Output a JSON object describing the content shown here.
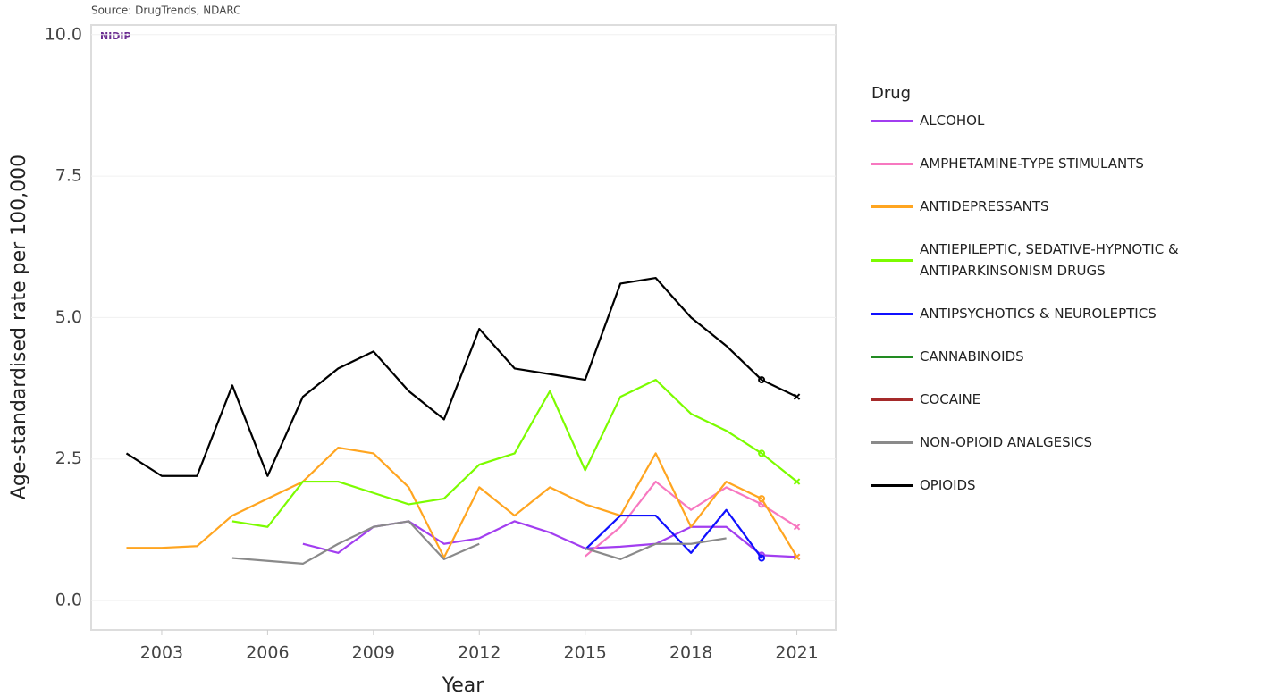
{
  "chart_data": {
    "type": "line",
    "source": "Source: DrugTrends, NDARC",
    "logo": "NIDIP",
    "x_label": "Year",
    "y_label": "Age-standardised rate per 100,000",
    "legend_title": "Drug",
    "xlim": [
      2001,
      2022.1
    ],
    "xticks": [
      2003,
      2006,
      2009,
      2012,
      2015,
      2018,
      2021
    ],
    "ylim": [
      -0.52,
      10.17
    ],
    "yticks": [
      {
        "value": 0,
        "label": "0.0"
      },
      2.5,
      {
        "value": 5,
        "label": "5.0"
      },
      7.5,
      {
        "value": 10,
        "label": "10.0"
      }
    ],
    "grid": true,
    "x": [
      2002,
      2003,
      2004,
      2005,
      2006,
      2007,
      2008,
      2009,
      2010,
      2011,
      2012,
      2013,
      2014,
      2015,
      2016,
      2017,
      2018,
      2019,
      2020,
      2021
    ],
    "series": [
      {
        "name": "ALCOHOL",
        "color": "#a23ef0",
        "values": [
          null,
          null,
          null,
          null,
          null,
          1.0,
          0.84,
          1.3,
          1.4,
          1.0,
          1.1,
          1.4,
          1.2,
          0.92,
          0.95,
          1.0,
          1.3,
          1.3,
          0.8,
          0.77
        ]
      },
      {
        "name": "AMPHETAMINE-TYPE STIMULANTS",
        "color": "#f778c0",
        "values": [
          null,
          null,
          null,
          null,
          null,
          null,
          null,
          null,
          null,
          null,
          null,
          null,
          null,
          0.78,
          1.3,
          2.1,
          1.6,
          2.0,
          1.7,
          1.3
        ]
      },
      {
        "name": "ANTIDEPRESSANTS",
        "color": "#ffa520",
        "values": [
          0.93,
          0.93,
          0.96,
          1.5,
          1.8,
          2.1,
          2.7,
          2.6,
          2.0,
          0.76,
          2.0,
          1.5,
          2.0,
          1.7,
          1.5,
          2.6,
          1.3,
          2.1,
          1.8,
          0.77
        ]
      },
      {
        "name": "ANTIEPILEPTIC, SEDATIVE-HYPNOTIC & ANTIPARKINSONISM DRUGS",
        "color": "#7cfc00",
        "values": [
          null,
          null,
          null,
          1.4,
          1.3,
          2.1,
          2.1,
          1.9,
          1.7,
          1.8,
          2.4,
          2.6,
          3.7,
          2.3,
          3.6,
          3.9,
          3.3,
          3.0,
          2.6,
          2.1
        ]
      },
      {
        "name": "ANTIPSYCHOTICS & NEUROLEPTICS",
        "color": "#1010ff",
        "values": [
          null,
          null,
          null,
          null,
          null,
          null,
          null,
          null,
          null,
          null,
          null,
          null,
          null,
          0.9,
          1.5,
          1.5,
          0.84,
          1.6,
          0.75,
          null
        ]
      },
      {
        "name": "CANNABINOIDS",
        "color": "#228b22",
        "values": [
          null,
          null,
          null,
          null,
          null,
          null,
          null,
          null,
          null,
          null,
          null,
          null,
          null,
          null,
          null,
          null,
          null,
          null,
          null,
          null
        ]
      },
      {
        "name": "COCAINE",
        "color": "#a52a2a",
        "values": [
          null,
          null,
          null,
          null,
          null,
          null,
          null,
          null,
          null,
          null,
          null,
          null,
          null,
          null,
          null,
          null,
          null,
          null,
          null,
          null
        ]
      },
      {
        "name": "NON-OPIOID ANALGESICS",
        "color": "#8a8a8a",
        "values": [
          null,
          null,
          null,
          0.75,
          0.7,
          0.65,
          1.0,
          1.3,
          1.4,
          0.73,
          1.0,
          null,
          null,
          0.92,
          0.73,
          1.0,
          1.0,
          1.1,
          null,
          null
        ]
      },
      {
        "name": "OPIOIDS",
        "color": "#000000",
        "values": [
          2.6,
          2.2,
          2.2,
          3.8,
          2.2,
          3.6,
          4.1,
          4.4,
          3.7,
          3.2,
          4.8,
          4.1,
          4.0,
          3.9,
          5.6,
          5.7,
          5.0,
          4.5,
          3.9,
          3.6
        ]
      }
    ]
  }
}
